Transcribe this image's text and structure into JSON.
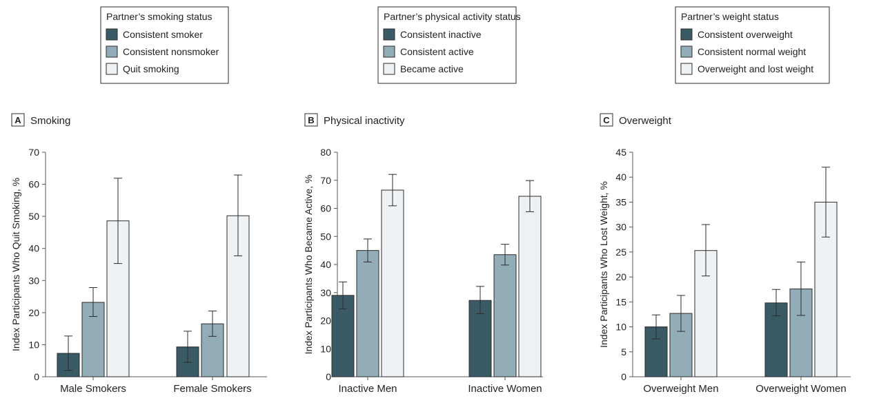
{
  "colors": {
    "dark": "#3a5a66",
    "mid": "#92adb8",
    "light": "#eef2f4",
    "stroke": "#2b2b2b",
    "axis": "#555555"
  },
  "panels": [
    {
      "id": "A",
      "letter": "A",
      "title": "Smoking",
      "legend_title": "Partner’s smoking status",
      "legend_items": [
        "Consistent smoker",
        "Consistent nonsmoker",
        "Quit smoking"
      ]
    },
    {
      "id": "B",
      "letter": "B",
      "title": "Physical inactivity",
      "legend_title": "Partner’s physical activity status",
      "legend_items": [
        "Consistent inactive",
        "Consistent active",
        "Became active"
      ]
    },
    {
      "id": "C",
      "letter": "C",
      "title": "Overweight",
      "legend_title": "Partner’s weight status",
      "legend_items": [
        "Consistent overweight",
        "Consistent normal weight",
        "Overweight and lost weight"
      ]
    }
  ],
  "chart_data": [
    {
      "type": "bar",
      "title": "Smoking",
      "ylabel": "Index Participants Who Quit Smoking, %",
      "ylim": [
        0,
        70
      ],
      "yticks": [
        0,
        10,
        20,
        30,
        40,
        50,
        60,
        70
      ],
      "categories": [
        "Male Smokers",
        "Female Smokers"
      ],
      "series": [
        {
          "name": "Consistent smoker",
          "values": [
            7.3,
            9.3
          ],
          "ci_low": [
            2.0,
            4.5
          ],
          "ci_high": [
            12.7,
            14.2
          ]
        },
        {
          "name": "Consistent nonsmoker",
          "values": [
            23.2,
            16.5
          ],
          "ci_low": [
            18.8,
            12.6
          ],
          "ci_high": [
            27.8,
            20.5
          ]
        },
        {
          "name": "Quit smoking",
          "values": [
            48.6,
            50.2
          ],
          "ci_low": [
            35.3,
            37.7
          ],
          "ci_high": [
            61.9,
            62.9
          ]
        }
      ]
    },
    {
      "type": "bar",
      "title": "Physical inactivity",
      "ylabel": "Index Participants Who Became Active, %",
      "ylim": [
        0,
        80
      ],
      "yticks": [
        0,
        10,
        20,
        30,
        40,
        50,
        60,
        70,
        80
      ],
      "categories": [
        "Inactive Men",
        "Inactive Women"
      ],
      "series": [
        {
          "name": "Consistent inactive",
          "values": [
            29.0,
            27.2
          ],
          "ci_low": [
            24.2,
            22.5
          ],
          "ci_high": [
            33.8,
            32.2
          ]
        },
        {
          "name": "Consistent active",
          "values": [
            45.0,
            43.5
          ],
          "ci_low": [
            40.9,
            39.8
          ],
          "ci_high": [
            49.1,
            47.2
          ]
        },
        {
          "name": "Became active",
          "values": [
            66.5,
            64.3
          ],
          "ci_low": [
            60.9,
            58.8
          ],
          "ci_high": [
            72.1,
            69.9
          ]
        }
      ]
    },
    {
      "type": "bar",
      "title": "Overweight",
      "ylabel": "Index Participants Who Lost Weight, %",
      "ylim": [
        0,
        45
      ],
      "yticks": [
        0,
        5,
        10,
        15,
        20,
        25,
        30,
        35,
        40,
        45
      ],
      "categories": [
        "Overweight Men",
        "Overweight Women"
      ],
      "series": [
        {
          "name": "Consistent overweight",
          "values": [
            10.0,
            14.8
          ],
          "ci_low": [
            7.6,
            12.2
          ],
          "ci_high": [
            12.4,
            17.5
          ]
        },
        {
          "name": "Consistent normal weight",
          "values": [
            12.7,
            17.6
          ],
          "ci_low": [
            9.1,
            12.3
          ],
          "ci_high": [
            16.3,
            23.0
          ]
        },
        {
          "name": "Overweight and lost weight",
          "values": [
            25.3,
            35.0
          ],
          "ci_low": [
            20.2,
            28.0
          ],
          "ci_high": [
            30.5,
            42.0
          ]
        }
      ]
    }
  ]
}
